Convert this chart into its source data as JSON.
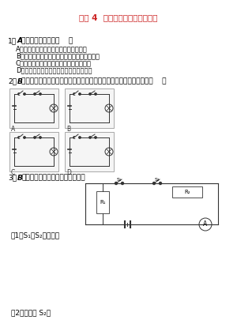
{
  "title": "专题 4  期中期末串讲之简单电路",
  "title_color": "#CC2222",
  "bg_color": "#ffffff",
  "q1_num": "1．",
  "q1_mark": "A",
  "q1_text": "下列说法正确的是（    ）",
  "q1_options": [
    "A．只有正电荷的定向移动才能形成电流",
    "B．金属导线中自由电子移动的方向为电流方向",
    "C．规定正电荷的定向移动方向为电流方向",
    "D．规定自由电荷移动的方向为电流的方向"
  ],
  "q2_num": "2．",
  "q2_mark": "B",
  "q2_text": "如图所示，为两个开关的组合在一起，同时控制一盏灯发光的电路是（    ）",
  "q3_num": "3．",
  "q3_mark": "B",
  "q3_text": "如图所示，试判断电路连接情况。",
  "q3_sub1": "（1）S₁、S₂都断开：",
  "q3_sub2": "（2）只闭合 S₂："
}
